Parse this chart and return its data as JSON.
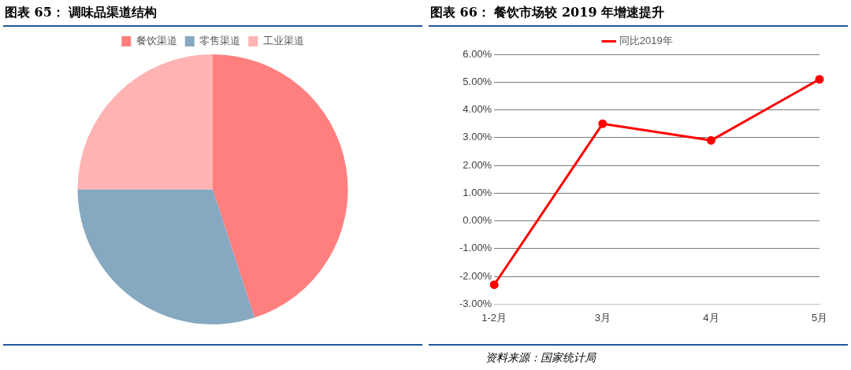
{
  "chart_data": [
    {
      "type": "pie",
      "title": "图表 65：  调味品渠道结构",
      "categories": [
        "餐饮渠道",
        "零售渠道",
        "工业渠道"
      ],
      "values": [
        45,
        30,
        25
      ],
      "colors": [
        "#ff7f7f",
        "#86a8c0",
        "#ffb3b3"
      ],
      "legend": "top"
    },
    {
      "type": "line",
      "title": "图表 66：  餐饮市场较 2019 年增速提升",
      "categories": [
        "1-2月",
        "3月",
        "4月",
        "5月"
      ],
      "series": [
        {
          "name": "同比2019年",
          "color": "#ff0000",
          "values": [
            -2.3,
            3.5,
            2.9,
            5.1
          ]
        }
      ],
      "ylim": [
        -3,
        6
      ],
      "yticks": [
        {
          "value": -3,
          "label": "-3.00%"
        },
        {
          "value": -2,
          "label": "-2.00%"
        },
        {
          "value": -1,
          "label": "-1.00%"
        },
        {
          "value": 0,
          "label": "0.00%"
        },
        {
          "value": 1,
          "label": "1.00%"
        },
        {
          "value": 2,
          "label": "2.00%"
        },
        {
          "value": 3,
          "label": "3.00%"
        },
        {
          "value": 4,
          "label": "4.00%"
        },
        {
          "value": 5,
          "label": "5.00%"
        },
        {
          "value": 6,
          "label": "6.00%"
        }
      ],
      "grid": "y",
      "legend": "top",
      "marker": "circle",
      "line_style": "solid",
      "annotations": [
        "资料来源：国家统计局"
      ]
    }
  ]
}
